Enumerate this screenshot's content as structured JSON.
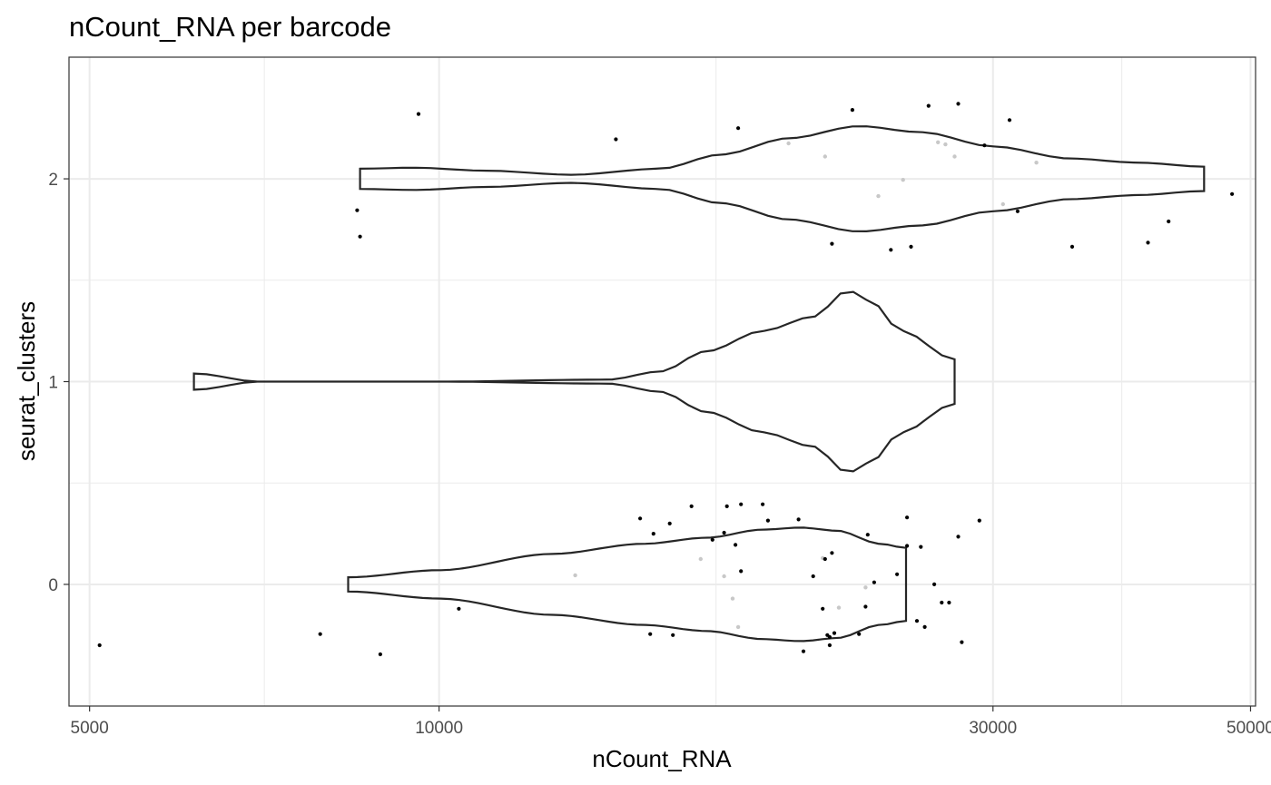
{
  "chart_data": {
    "type": "violin",
    "title": "nCount_RNA per barcode",
    "xlabel": "nCount_RNA",
    "ylabel": "seurat_clusters",
    "x_scale": "log10",
    "xlim": [
      4800,
      50500
    ],
    "ylim": [
      -0.6,
      2.6
    ],
    "x_ticks": [
      5000,
      10000,
      30000,
      50000
    ],
    "x_tick_labels": [
      "5000",
      "10000",
      "30000",
      "50000"
    ],
    "y_ticks": [
      0,
      1,
      2
    ],
    "y_tick_labels": [
      "0",
      "1",
      "2"
    ],
    "grid": true,
    "colors": {
      "violin_outline": "#262626",
      "outlier_point": "#000000",
      "inner_point": "#c8c8c8"
    },
    "series": [
      {
        "cluster": 0,
        "x_min": 8350,
        "x_max": 25250,
        "profile": [
          [
            8350,
            0.035
          ],
          [
            10000,
            0.07
          ],
          [
            12500,
            0.15
          ],
          [
            15000,
            0.2
          ],
          [
            17000,
            0.23
          ],
          [
            19000,
            0.27
          ],
          [
            20500,
            0.28
          ],
          [
            22000,
            0.265
          ],
          [
            24000,
            0.2
          ],
          [
            25250,
            0.18
          ]
        ],
        "points": [
          [
            7900,
            -0.245
          ],
          [
            8900,
            -0.345
          ],
          [
            10400,
            -0.12
          ],
          [
            13100,
            0.045
          ],
          [
            14900,
            0.325
          ],
          [
            15200,
            -0.245
          ],
          [
            15800,
            0.3
          ],
          [
            15900,
            -0.25
          ],
          [
            16500,
            0.385
          ],
          [
            16800,
            0.125
          ],
          [
            17600,
            0.04
          ],
          [
            17700,
            0.385
          ],
          [
            17900,
            -0.07
          ],
          [
            18100,
            -0.21
          ],
          [
            18200,
            0.395
          ],
          [
            19200,
            0.315
          ],
          [
            20600,
            -0.33
          ],
          [
            21400,
            0.13
          ],
          [
            21700,
            -0.3
          ],
          [
            22100,
            -0.115
          ],
          [
            23000,
            -0.245
          ],
          [
            23300,
            -0.015
          ],
          [
            25300,
            0.33
          ],
          [
            26000,
            0.185
          ],
          [
            28200,
            -0.285
          ]
        ]
      },
      {
        "cluster": 1,
        "x_min": 6150,
        "x_max": 27800,
        "profile": [
          [
            6150,
            0.04
          ],
          [
            7000,
            0.0
          ],
          [
            10000,
            0.0
          ],
          [
            14000,
            0.01
          ],
          [
            15500,
            0.05
          ],
          [
            17000,
            0.15
          ],
          [
            19000,
            0.25
          ],
          [
            21000,
            0.32
          ],
          [
            22500,
            0.45
          ],
          [
            23500,
            0.4
          ],
          [
            25000,
            0.25
          ],
          [
            27800,
            0.11
          ]
        ],
        "points": [
          [
            5100,
            -0.3
          ],
          [
            15300,
            0.25
          ],
          [
            17200,
            0.22
          ],
          [
            17600,
            0.255
          ],
          [
            18000,
            0.195
          ],
          [
            18200,
            0.065
          ],
          [
            19000,
            0.395
          ],
          [
            20400,
            0.32
          ],
          [
            21000,
            0.04
          ],
          [
            21400,
            -0.12
          ],
          [
            21500,
            0.125
          ],
          [
            21600,
            -0.25
          ],
          [
            21700,
            -0.26
          ],
          [
            21800,
            0.155
          ],
          [
            21900,
            -0.24
          ],
          [
            23300,
            -0.11
          ],
          [
            23400,
            0.245
          ],
          [
            23700,
            0.01
          ],
          [
            24800,
            0.05
          ],
          [
            25300,
            0.19
          ],
          [
            25800,
            -0.18
          ],
          [
            26200,
            -0.21
          ],
          [
            26700,
            0.0
          ],
          [
            27100,
            -0.09
          ],
          [
            27500,
            -0.09
          ],
          [
            28000,
            0.235
          ],
          [
            29200,
            0.315
          ]
        ]
      },
      {
        "cluster": 2,
        "x_min": 8550,
        "x_max": 45600,
        "profile": [
          [
            8550,
            0.05
          ],
          [
            9500,
            0.055
          ],
          [
            11000,
            0.04
          ],
          [
            13000,
            0.02
          ],
          [
            15500,
            0.05
          ],
          [
            17500,
            0.12
          ],
          [
            20000,
            0.2
          ],
          [
            23000,
            0.26
          ],
          [
            26000,
            0.23
          ],
          [
            30000,
            0.16
          ],
          [
            35000,
            0.1
          ],
          [
            40000,
            0.08
          ],
          [
            45600,
            0.06
          ]
        ],
        "points": [
          [
            8500,
            1.845
          ],
          [
            8550,
            1.715
          ],
          [
            9600,
            2.32
          ],
          [
            14200,
            2.195
          ],
          [
            18100,
            2.25
          ],
          [
            20000,
            2.175
          ],
          [
            21500,
            2.11
          ],
          [
            21800,
            1.68
          ],
          [
            22700,
            2.34
          ],
          [
            23900,
            1.915
          ],
          [
            24500,
            1.65
          ],
          [
            25100,
            1.995
          ],
          [
            25500,
            1.665
          ],
          [
            26400,
            2.36
          ],
          [
            26900,
            2.18
          ],
          [
            27300,
            2.17
          ],
          [
            27800,
            2.11
          ],
          [
            28000,
            2.37
          ],
          [
            29500,
            2.165
          ],
          [
            30600,
            1.875
          ],
          [
            31000,
            2.29
          ],
          [
            31500,
            1.84
          ],
          [
            32700,
            2.08
          ],
          [
            35100,
            1.665
          ],
          [
            40800,
            1.685
          ],
          [
            42500,
            1.79
          ],
          [
            48200,
            1.925
          ]
        ]
      }
    ]
  }
}
